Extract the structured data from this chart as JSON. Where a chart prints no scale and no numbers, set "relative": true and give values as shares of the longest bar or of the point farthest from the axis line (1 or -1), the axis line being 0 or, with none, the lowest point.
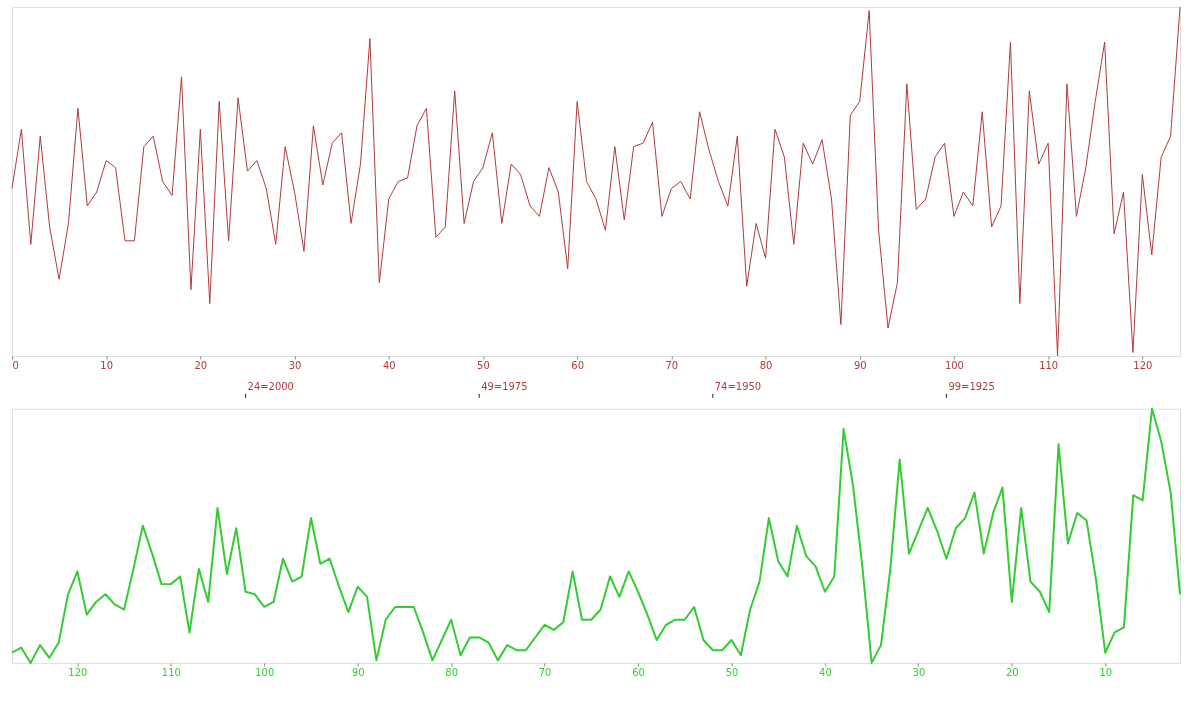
{
  "chart_data": [
    {
      "type": "line",
      "relative": true,
      "categories": [
        "0",
        null,
        null,
        null,
        null,
        null,
        null,
        null,
        null,
        null,
        "10",
        null,
        null,
        null,
        null,
        null,
        null,
        null,
        null,
        null,
        "20",
        null,
        null,
        null,
        null,
        null,
        null,
        null,
        null,
        null,
        "30",
        null,
        null,
        null,
        null,
        null,
        null,
        null,
        null,
        null,
        "40",
        null,
        null,
        null,
        null,
        null,
        null,
        null,
        null,
        null,
        "50",
        null,
        null,
        null,
        null,
        null,
        null,
        null,
        null,
        null,
        "60",
        null,
        null,
        null,
        null,
        null,
        null,
        null,
        null,
        null,
        "70",
        null,
        null,
        null,
        null,
        null,
        null,
        null,
        null,
        null,
        "80",
        null,
        null,
        null,
        null,
        null,
        null,
        null,
        null,
        null,
        "90",
        null,
        null,
        null,
        null,
        null,
        null,
        null,
        null,
        null,
        "100",
        null,
        null,
        null,
        null,
        null,
        null,
        null,
        null,
        null,
        "110",
        null,
        null,
        null,
        null,
        null,
        null,
        null,
        null,
        null,
        "120",
        null,
        null,
        null,
        null
      ],
      "series": [
        {
          "color": "#b03a3a",
          "values": [
            0.48,
            0.65,
            0.32,
            0.63,
            0.37,
            0.22,
            0.38,
            0.71,
            0.43,
            0.47,
            0.56,
            0.54,
            0.33,
            0.33,
            0.6,
            0.63,
            0.5,
            0.46,
            0.8,
            0.19,
            0.65,
            0.15,
            0.73,
            0.33,
            0.74,
            0.53,
            0.56,
            0.48,
            0.32,
            0.6,
            0.47,
            0.3,
            0.66,
            0.49,
            0.61,
            0.64,
            0.38,
            0.55,
            0.91,
            0.21,
            0.45,
            0.5,
            0.51,
            0.66,
            0.71,
            0.34,
            0.37,
            0.76,
            0.38,
            0.5,
            0.54,
            0.64,
            0.38,
            0.55,
            0.52,
            0.43,
            0.4,
            0.54,
            0.47,
            0.25,
            0.73,
            0.5,
            0.45,
            0.36,
            0.6,
            0.39,
            0.6,
            0.61,
            0.67,
            0.4,
            0.48,
            0.5,
            0.45,
            0.7,
            0.59,
            0.5,
            0.43,
            0.63,
            0.2,
            0.38,
            0.28,
            0.65,
            0.57,
            0.32,
            0.61,
            0.55,
            0.62,
            0.45,
            0.09,
            0.69,
            0.73,
            0.99,
            0.36,
            0.08,
            0.21,
            0.78,
            0.42,
            0.45,
            0.57,
            0.61,
            0.4,
            0.47,
            0.43,
            0.7,
            0.37,
            0.43,
            0.9,
            0.15,
            0.76,
            0.55,
            0.61,
            0,
            0.78,
            0.4,
            0.54,
            0.73,
            0.9,
            0.35,
            0.47,
            0.01,
            0.52,
            0.29,
            0.57,
            0.63,
            1
          ]
        }
      ],
      "annotations": [
        "24=2000",
        "49=1975",
        "74=1950",
        "99=1925"
      ]
    },
    {
      "type": "line",
      "relative": true,
      "categories": [
        null,
        null,
        null,
        null,
        null,
        null,
        null,
        "120",
        null,
        null,
        null,
        null,
        null,
        null,
        null,
        null,
        null,
        "110",
        null,
        null,
        null,
        null,
        null,
        null,
        null,
        null,
        null,
        "100",
        null,
        null,
        null,
        null,
        null,
        null,
        null,
        null,
        null,
        "90",
        null,
        null,
        null,
        null,
        null,
        null,
        null,
        null,
        null,
        "80",
        null,
        null,
        null,
        null,
        null,
        null,
        null,
        null,
        null,
        "70",
        null,
        null,
        null,
        null,
        null,
        null,
        null,
        null,
        null,
        "60",
        null,
        null,
        null,
        null,
        null,
        null,
        null,
        null,
        null,
        "50",
        null,
        null,
        null,
        null,
        null,
        null,
        null,
        null,
        null,
        "40",
        null,
        null,
        null,
        null,
        null,
        null,
        null,
        null,
        null,
        "30",
        null,
        null,
        null,
        null,
        null,
        null,
        null,
        null,
        null,
        "20",
        null,
        null,
        null,
        null,
        null,
        null,
        null,
        null,
        null,
        "10",
        null,
        null,
        null,
        null,
        null,
        null,
        null,
        null
      ],
      "series": [
        {
          "color": "#33cc33",
          "values": [
            0.04,
            0.06,
            0,
            0.07,
            0.02,
            0.08,
            0.27,
            0.36,
            0.19,
            0.24,
            0.27,
            0.23,
            0.21,
            0.37,
            0.54,
            0.43,
            0.31,
            0.31,
            0.34,
            0.12,
            0.37,
            0.24,
            0.61,
            0.35,
            0.53,
            0.28,
            0.27,
            0.22,
            0.24,
            0.41,
            0.32,
            0.34,
            0.57,
            0.39,
            0.41,
            0.3,
            0.2,
            0.3,
            0.26,
            0.01,
            0.17,
            0.22,
            0.22,
            0.22,
            0.12,
            0.01,
            0.09,
            0.17,
            0.03,
            0.1,
            0.1,
            0.08,
            0.01,
            0.07,
            0.05,
            0.05,
            0.1,
            0.15,
            0.13,
            0.16,
            0.36,
            0.17,
            0.17,
            0.21,
            0.34,
            0.26,
            0.36,
            0.28,
            0.19,
            0.09,
            0.15,
            0.17,
            0.17,
            0.22,
            0.09,
            0.05,
            0.05,
            0.09,
            0.03,
            0.21,
            0.32,
            0.57,
            0.4,
            0.34,
            0.54,
            0.42,
            0.38,
            0.28,
            0.34,
            0.92,
            0.7,
            0.38,
            0.0,
            0.07,
            0.37,
            0.8,
            0.43,
            0.52,
            0.61,
            0.52,
            0.41,
            0.53,
            0.57,
            0.67,
            0.43,
            0.59,
            0.69,
            0.24,
            0.61,
            0.32,
            0.28,
            0.2,
            0.86,
            0.47,
            0.59,
            0.56,
            0.33,
            0.04,
            0.12,
            0.14,
            0.66,
            0.64,
            1,
            0.87,
            0.67,
            0.27
          ]
        }
      ]
    }
  ]
}
